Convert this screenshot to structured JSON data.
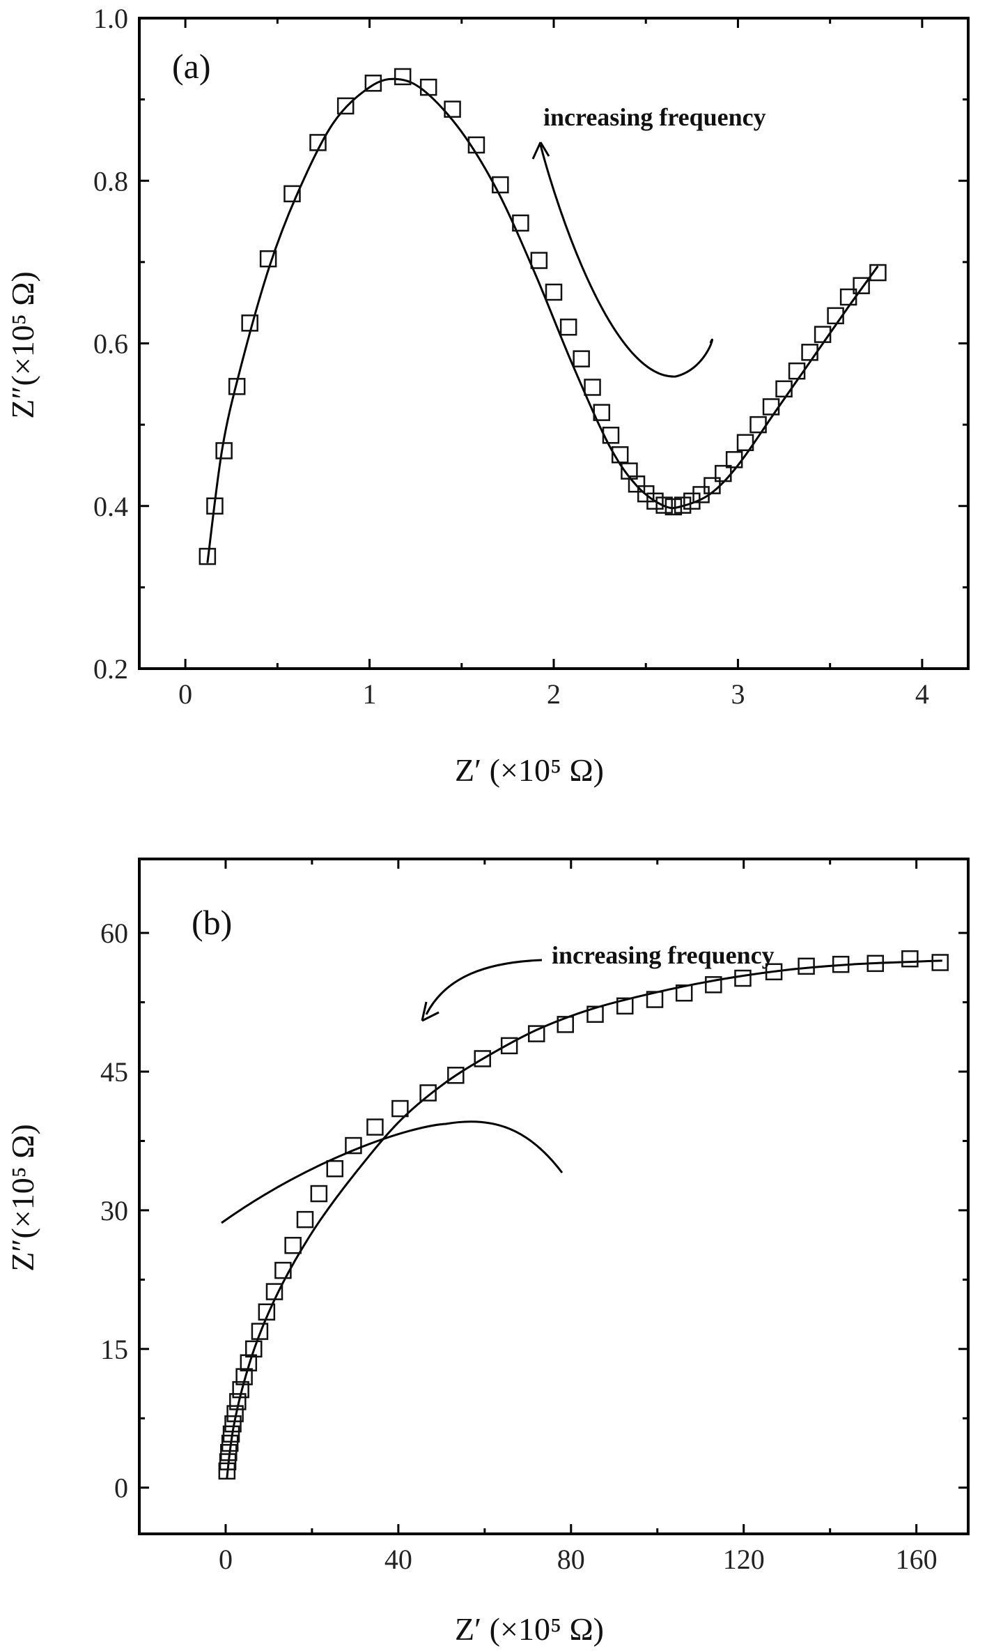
{
  "chart_data": [
    {
      "type": "scatter",
      "panel_label": "(a)",
      "xlabel": "Z′ (×10⁵ Ω)",
      "ylabel": "Z″(×10⁵ Ω)",
      "xlim": [
        -0.25,
        4.25
      ],
      "ylim": [
        0.2,
        1.0
      ],
      "xticks": [
        0,
        1,
        2,
        3,
        4
      ],
      "xtick_labels": [
        "0",
        "1",
        "2",
        "3",
        "4"
      ],
      "yticks": [
        0.2,
        0.4,
        0.6,
        0.8,
        1.0
      ],
      "ytick_labels": [
        "0.2",
        "0.4",
        "0.6",
        "0.8",
        "1.0"
      ],
      "grid": false,
      "annotation": "increasing frequency",
      "series": [
        {
          "marker": "open-square",
          "x": [
            0.12,
            0.16,
            0.21,
            0.28,
            0.35,
            0.45,
            0.58,
            0.72,
            0.87,
            1.02,
            1.18,
            1.32,
            1.45,
            1.58,
            1.71,
            1.82,
            1.92,
            2.0,
            2.08,
            2.15,
            2.21,
            2.26,
            2.31,
            2.36,
            2.41,
            2.45,
            2.5,
            2.55,
            2.6,
            2.65,
            2.7,
            2.75,
            2.8,
            2.86,
            2.92,
            2.98,
            3.04,
            3.11,
            3.18,
            3.25,
            3.32,
            3.39,
            3.46,
            3.53,
            3.6,
            3.67,
            3.76
          ],
          "y": [
            0.338,
            0.4,
            0.468,
            0.547,
            0.625,
            0.704,
            0.784,
            0.847,
            0.892,
            0.92,
            0.928,
            0.915,
            0.888,
            0.844,
            0.795,
            0.748,
            0.702,
            0.663,
            0.62,
            0.581,
            0.546,
            0.515,
            0.487,
            0.463,
            0.443,
            0.427,
            0.415,
            0.406,
            0.401,
            0.399,
            0.401,
            0.406,
            0.414,
            0.425,
            0.44,
            0.457,
            0.478,
            0.5,
            0.522,
            0.544,
            0.566,
            0.589,
            0.611,
            0.634,
            0.657,
            0.671,
            0.687
          ]
        },
        {
          "style": "solid-line",
          "x": [
            0.12,
            0.2,
            0.3,
            0.45,
            0.6,
            0.8,
            1.0,
            1.15,
            1.3,
            1.5,
            1.7,
            1.9,
            2.1,
            2.3,
            2.45,
            2.6,
            2.7,
            2.85,
            3.0,
            3.2,
            3.4,
            3.6,
            3.76
          ],
          "y": [
            0.33,
            0.47,
            0.57,
            0.69,
            0.78,
            0.87,
            0.915,
            0.925,
            0.91,
            0.86,
            0.785,
            0.685,
            0.575,
            0.475,
            0.425,
            0.4,
            0.4,
            0.415,
            0.45,
            0.515,
            0.58,
            0.645,
            0.695
          ]
        }
      ]
    },
    {
      "type": "scatter",
      "panel_label": "(b)",
      "xlabel": "Z′ (×10⁵ Ω)",
      "ylabel": "Z″(×10⁵ Ω)",
      "xlim": [
        -20,
        172
      ],
      "ylim": [
        -5,
        68
      ],
      "xticks": [
        0,
        40,
        80,
        120,
        160
      ],
      "xtick_labels": [
        "0",
        "40",
        "80",
        "120",
        "160"
      ],
      "yticks": [
        0,
        15,
        30,
        45,
        60
      ],
      "ytick_labels": [
        "0",
        "15",
        "30",
        "45",
        "60"
      ],
      "grid": false,
      "annotation": "increasing frequency",
      "series": [
        {
          "marker": "open-square",
          "x": [
            0.3,
            0.5,
            0.7,
            1.0,
            1.3,
            1.7,
            2.2,
            2.8,
            3.5,
            4.3,
            5.3,
            6.5,
            7.9,
            9.5,
            11.3,
            13.3,
            15.6,
            18.4,
            21.6,
            25.3,
            29.6,
            34.6,
            40.4,
            46.9,
            53.3,
            59.5,
            65.7,
            72.0,
            78.7,
            85.6,
            92.5,
            99.4,
            106.2,
            113.0,
            119.8,
            127.0,
            134.5,
            142.5,
            150.5,
            158.5,
            165.5
          ],
          "y": [
            1.8,
            2.8,
            3.8,
            4.8,
            5.8,
            6.9,
            8.0,
            9.3,
            10.6,
            12.0,
            13.5,
            15.0,
            16.9,
            19.0,
            21.2,
            23.5,
            26.2,
            29.0,
            31.8,
            34.5,
            37.0,
            39.0,
            41.0,
            42.7,
            44.6,
            46.4,
            47.8,
            49.1,
            50.1,
            51.2,
            52.1,
            52.8,
            53.5,
            54.4,
            55.1,
            55.8,
            56.4,
            56.6,
            56.7,
            57.2,
            56.8
          ]
        },
        {
          "style": "solid-line",
          "x": [
            0.3,
            1.0,
            2.0,
            4.0,
            7.0,
            11.0,
            16.0,
            22.0,
            30.0,
            40.0,
            50.0,
            60.0,
            72.0,
            85.0,
            100.0,
            115.0,
            130.0,
            145.0,
            160.0,
            166.0
          ],
          "y": [
            1.0,
            4.0,
            7.0,
            11.0,
            15.5,
            20.0,
            24.5,
            29.0,
            34.0,
            39.5,
            43.5,
            46.5,
            49.5,
            51.8,
            53.6,
            55.0,
            56.0,
            56.6,
            56.9,
            57.0
          ]
        }
      ]
    }
  ]
}
